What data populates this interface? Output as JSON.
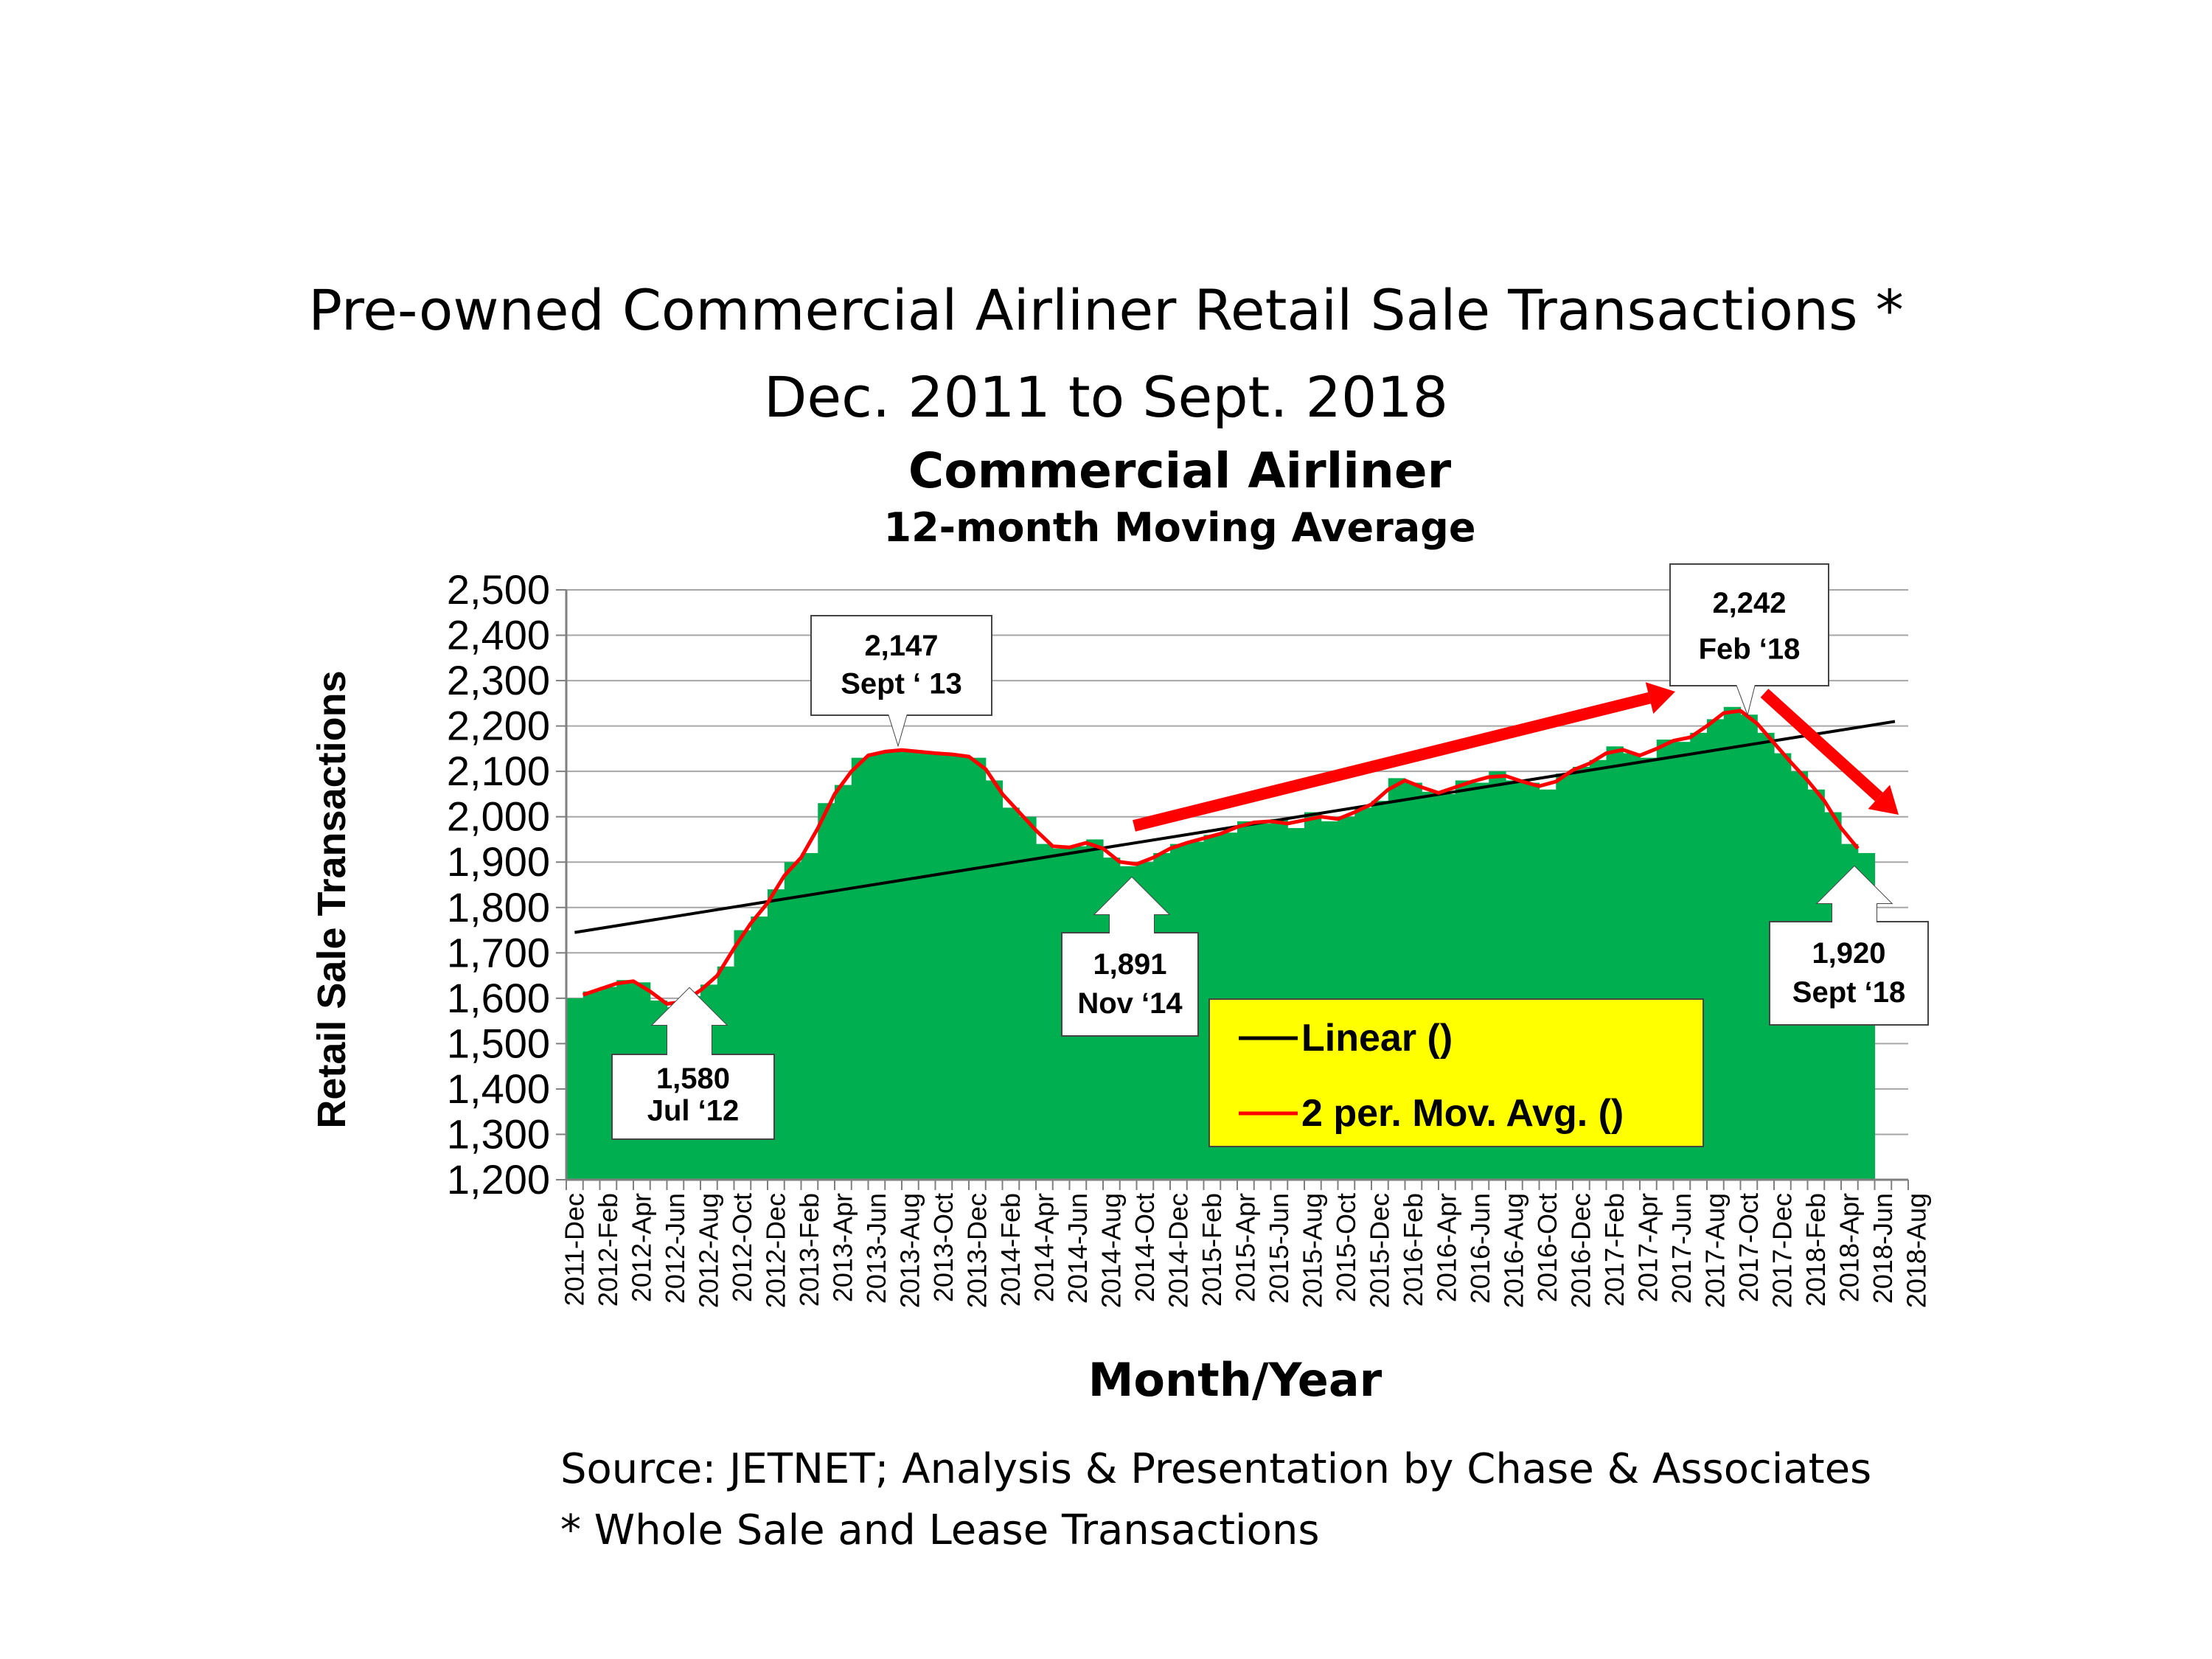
{
  "slide": {
    "title_line1": "Pre-owned Commercial Airliner Retail Sale Transactions *",
    "title_line2": "Dec. 2011 to Sept. 2018",
    "source": "Source: JETNET; Analysis & Presentation by Chase & Associates",
    "note": "* Whole Sale and Lease Transactions"
  },
  "colors": {
    "area": "#00b050",
    "moving_avg": "#ff0000",
    "trend": "#000000",
    "legend_bg": "#ffff00",
    "arrow": "#ff0000"
  },
  "chart_data": {
    "type": "area",
    "title": "Commercial Airliner",
    "subtitle": "12-month Moving Average",
    "ylabel": "Retail Sale Transactions",
    "xlabel": "Month/Year",
    "ylim": [
      1200,
      2500
    ],
    "ytick_step": 100,
    "yticks": [
      "1,200",
      "1,300",
      "1,400",
      "1,500",
      "1,600",
      "1,700",
      "1,800",
      "1,900",
      "2,000",
      "2,100",
      "2,200",
      "2,300",
      "2,400",
      "2,500"
    ],
    "grid": true,
    "extra_empty_slots": 2,
    "x_tick_labels": [
      "2011-Dec",
      "2012-Feb",
      "2012-Apr",
      "2012-Jun",
      "2012-Aug",
      "2012-Oct",
      "2012-Dec",
      "2013-Feb",
      "2013-Apr",
      "2013-Jun",
      "2013-Aug",
      "2013-Oct",
      "2013-Dec",
      "2014-Feb",
      "2014-Apr",
      "2014-Jun",
      "2014-Aug",
      "2014-Oct",
      "2014-Dec",
      "2015-Feb",
      "2015-Apr",
      "2015-Jun",
      "2015-Aug",
      "2015-Oct",
      "2015-Dec",
      "2016-Feb",
      "2016-Apr",
      "2016-Jun",
      "2016-Aug",
      "2016-Oct",
      "2016-Dec",
      "2017-Feb",
      "2017-Apr",
      "2017-Jun",
      "2017-Aug",
      "2017-Oct",
      "2017-Dec",
      "2018-Feb",
      "2018-Apr",
      "2018-Jun",
      "2018-Aug"
    ],
    "series": [
      {
        "name": "12-month Moving Average",
        "style": "area",
        "values": [
          1600,
          1615,
          1625,
          1640,
          1635,
          1595,
          1580,
          1605,
          1630,
          1670,
          1750,
          1780,
          1840,
          1900,
          1920,
          2030,
          2070,
          2130,
          2140,
          2147,
          2147,
          2140,
          2140,
          2135,
          2130,
          2080,
          2020,
          2000,
          1940,
          1930,
          1935,
          1950,
          1910,
          1891,
          1900,
          1920,
          1940,
          1945,
          1960,
          1965,
          1990,
          1985,
          1995,
          1975,
          2010,
          1990,
          2000,
          2020,
          2035,
          2085,
          2075,
          2055,
          2050,
          2080,
          2075,
          2100,
          2080,
          2075,
          2060,
          2095,
          2110,
          2125,
          2155,
          2140,
          2130,
          2170,
          2165,
          2185,
          2215,
          2242,
          2225,
          2185,
          2140,
          2100,
          2060,
          2010,
          1940,
          1920
        ]
      }
    ],
    "moving_average": {
      "name": "2 per. Mov. Avg. ()",
      "period": 2
    },
    "trendline": {
      "name": "Linear ()",
      "start": 1745,
      "end": 2210
    },
    "legend": {
      "position": "bottom-right",
      "entries": [
        "Linear ()",
        "2 per. Mov. Avg. ()"
      ]
    },
    "annotations": [
      {
        "value": "1,580",
        "label": "Jul ‘12",
        "index": 6
      },
      {
        "value": "2,147",
        "label": "Sept ‘ 13",
        "index": 20
      },
      {
        "value": "1,891",
        "label": "Nov ‘14",
        "index": 33
      },
      {
        "value": "2,242",
        "label": "Feb ‘18",
        "index": 69
      },
      {
        "value": "1,920",
        "label": "Sept ‘18",
        "index": 77
      }
    ]
  }
}
